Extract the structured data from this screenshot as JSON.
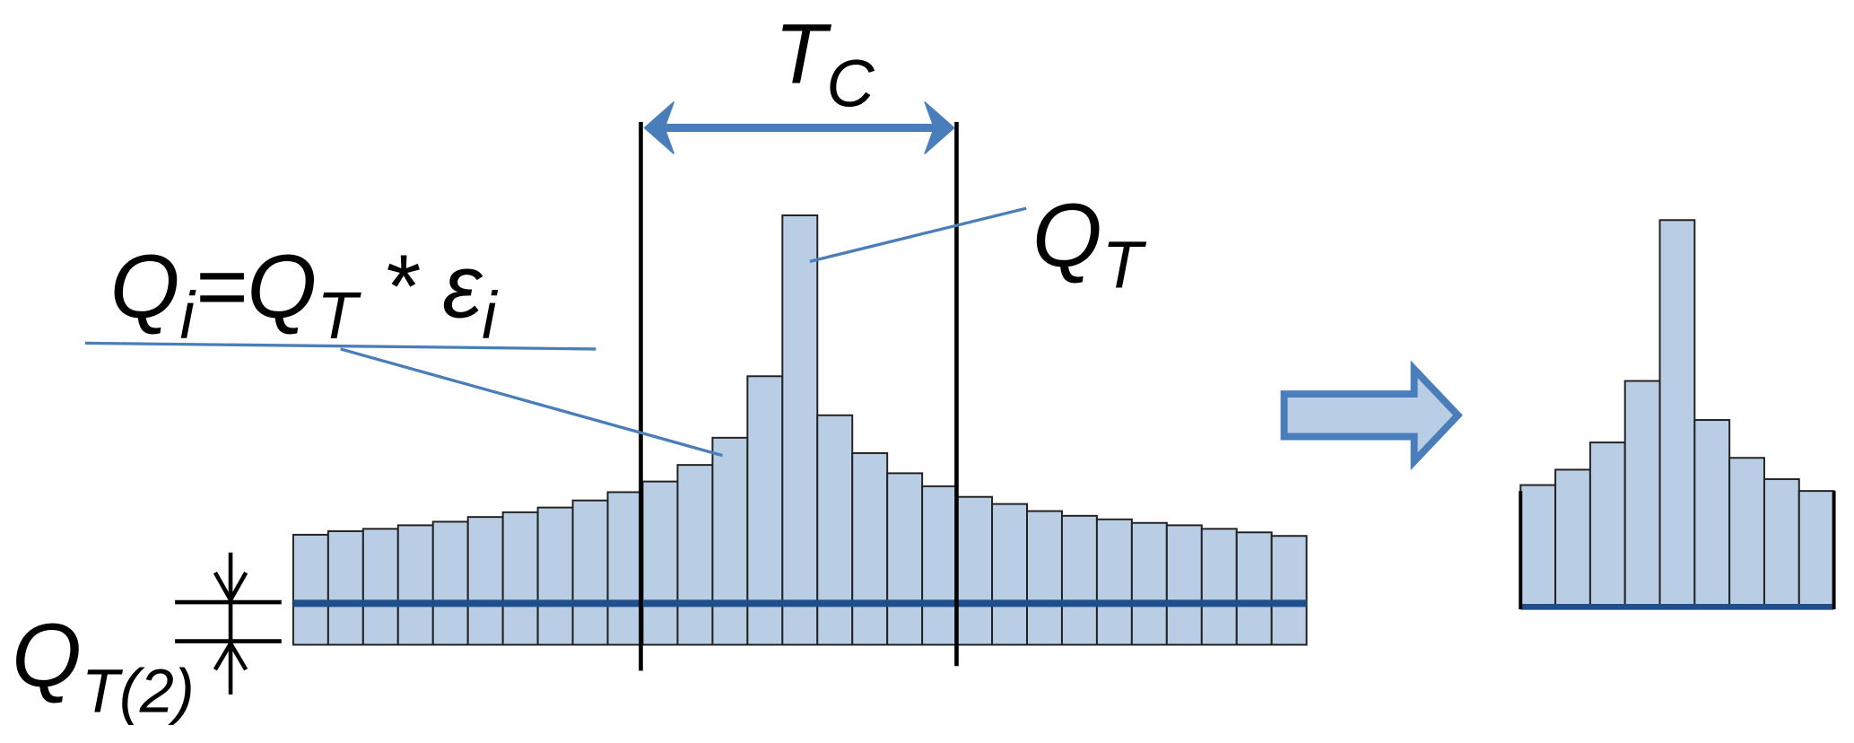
{
  "labels": {
    "period": {
      "main": "T",
      "sub": "C"
    },
    "peak": {
      "main": "Q",
      "sub": "T"
    },
    "formula": {
      "parts": [
        "Q",
        "i",
        "=Q",
        "T",
        " * ε",
        "i"
      ]
    },
    "base": {
      "main": "Q",
      "sub": "T(2)"
    }
  }
}
